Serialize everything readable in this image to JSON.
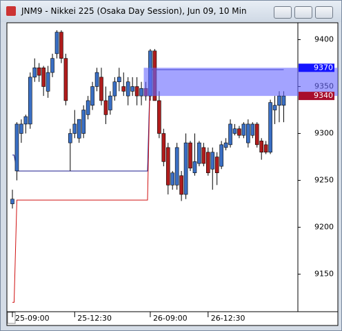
{
  "chart_data": {
    "type": "candlestick",
    "title": "JNM9 - Nikkei 225 (Osaka Day Session), Jun 09, 10 Min",
    "categories": [
      "25-09:00",
      null,
      null,
      null,
      null,
      null,
      null,
      null,
      null,
      null,
      null,
      null,
      null,
      null,
      "25-12:30",
      null,
      null,
      null,
      null,
      null,
      null,
      null,
      null,
      null,
      null,
      null,
      null,
      null,
      null,
      null,
      null,
      "26-09:00",
      null,
      null,
      null,
      null,
      null,
      null,
      null,
      null,
      null,
      null,
      null,
      null,
      "26-12:30",
      null,
      null,
      null,
      null,
      null,
      null,
      null,
      null,
      null,
      null,
      null,
      null,
      null,
      null,
      null,
      null,
      null
    ],
    "series": [
      {
        "up_color": "#3a6fc4",
        "down_color": "#b01c1c",
        "open": [
          9225,
          9260,
          9300,
          9310,
          9310,
          9360,
          9370,
          9370,
          9345,
          9365,
          9385,
          9408,
          9380,
          9290,
          9300,
          9295,
          9300,
          9320,
          9330,
          9350,
          9360,
          9335,
          9325,
          9340,
          9355,
          9350,
          9340,
          9345,
          9350,
          9340,
          9348,
          9340,
          9388,
          9335,
          9300,
          9285,
          9245,
          9245,
          9255,
          9235,
          9290,
          9258,
          9268,
          9285,
          9280,
          9262,
          9275,
          9265,
          9285,
          9288,
          9300,
          9305,
          9298,
          9290,
          9298,
          9310,
          9292,
          9288,
          9280,
          9325,
          9330,
          9330
        ],
        "high": [
          9240,
          9312,
          9315,
          9320,
          9365,
          9380,
          9375,
          9372,
          9372,
          9385,
          9410,
          9410,
          9385,
          9305,
          9325,
          9315,
          9330,
          9340,
          9355,
          9370,
          9370,
          9350,
          9345,
          9360,
          9370,
          9365,
          9360,
          9360,
          9360,
          9355,
          9355,
          9390,
          9390,
          9345,
          9305,
          9290,
          9260,
          9290,
          9260,
          9300,
          9292,
          9300,
          9292,
          9290,
          9285,
          9285,
          9280,
          9292,
          9295,
          9315,
          9310,
          9308,
          9312,
          9315,
          9312,
          9312,
          9295,
          9292,
          9336,
          9340,
          9345,
          9345
        ],
        "low": [
          9220,
          9250,
          9290,
          9300,
          9305,
          9355,
          9355,
          9340,
          9338,
          9360,
          9380,
          9375,
          9330,
          9260,
          9295,
          9290,
          9295,
          9315,
          9325,
          9345,
          9330,
          9310,
          9320,
          9335,
          9345,
          9340,
          9330,
          9340,
          9330,
          9330,
          9335,
          9335,
          9335,
          9295,
          9265,
          9235,
          9240,
          9240,
          9228,
          9230,
          9260,
          9255,
          9265,
          9265,
          9255,
          9240,
          9245,
          9262,
          9282,
          9285,
          9298,
          9295,
          9295,
          9285,
          9295,
          9285,
          9272,
          9278,
          9278,
          9310,
          9312,
          9312
        ],
        "close": [
          9230,
          9310,
          9310,
          9318,
          9360,
          9370,
          9362,
          9350,
          9365,
          9380,
          9408,
          9380,
          9335,
          9300,
          9310,
          9315,
          9325,
          9335,
          9350,
          9365,
          9335,
          9320,
          9340,
          9355,
          9360,
          9345,
          9355,
          9350,
          9340,
          9348,
          9340,
          9388,
          9335,
          9300,
          9270,
          9245,
          9258,
          9285,
          9235,
          9290,
          9263,
          9270,
          9290,
          9268,
          9258,
          9280,
          9258,
          9288,
          9290,
          9310,
          9305,
          9298,
          9310,
          9310,
          9310,
          9288,
          9280,
          9280,
          9333,
          9330,
          9340,
          9340
        ]
      }
    ],
    "overlays": [
      {
        "color": "#1a1a8c",
        "values": [
          9277,
          9260,
          9260,
          9260,
          9260,
          9260,
          9260,
          9260,
          9260,
          9260,
          9260,
          9260,
          9260,
          9260,
          9260,
          9260,
          9260,
          9260,
          9260,
          9260,
          9260,
          9260,
          9260,
          9260,
          9260,
          9260,
          9260,
          9260,
          9260,
          9260,
          9260,
          9368,
          9368,
          9368,
          9368,
          9368,
          9368,
          9368,
          9368,
          9368,
          9368,
          9368,
          9368,
          9368,
          9368,
          9368,
          9368,
          9368,
          9368,
          9368,
          9368,
          9368,
          9368,
          9368,
          9368,
          9368,
          9368,
          9368,
          9368,
          9368,
          9368,
          9368
        ]
      },
      {
        "color": "#d01010",
        "values": [
          9120,
          9229,
          9229,
          9229,
          9229,
          9229,
          9229,
          9229,
          9229,
          9229,
          9229,
          9229,
          9229,
          9229,
          9229,
          9229,
          9229,
          9229,
          9229,
          9229,
          9229,
          9229,
          9229,
          9229,
          9229,
          9229,
          9229,
          9229,
          9229,
          9229,
          9229,
          9368,
          null,
          null,
          null,
          null,
          null,
          null,
          null,
          null,
          null,
          null,
          null,
          null,
          null,
          null,
          null,
          null,
          null,
          null,
          null,
          null,
          null,
          null,
          null,
          null,
          null,
          null,
          null,
          null,
          null,
          null
        ]
      }
    ],
    "band": {
      "from": 9340,
      "to": 9370,
      "start_index": 30,
      "color": "#6666ff"
    },
    "price_tags": [
      {
        "value": 9370,
        "label": "9370",
        "color": "#1515ff"
      },
      {
        "value": 9340,
        "label": "9340",
        "color": "#a80f2c"
      }
    ],
    "ylim": [
      9110,
      9418
    ],
    "yticks": [
      9150,
      9200,
      9250,
      9300,
      9350,
      9400
    ]
  }
}
